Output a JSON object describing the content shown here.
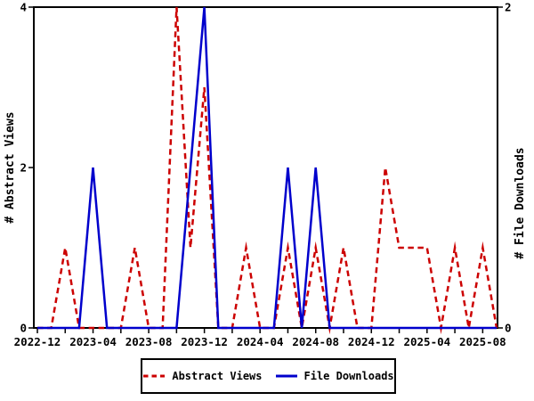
{
  "chart_data": {
    "type": "line",
    "title": "",
    "background": "#ffffff",
    "axis_color": "#000000",
    "grid": false,
    "x": [
      "2022-12",
      "2023-01",
      "2023-02",
      "2023-03",
      "2023-04",
      "2023-05",
      "2023-06",
      "2023-07",
      "2023-08",
      "2023-09",
      "2023-10",
      "2023-11",
      "2023-12",
      "2024-01",
      "2024-02",
      "2024-03",
      "2024-04",
      "2024-05",
      "2024-06",
      "2024-07",
      "2024-08",
      "2024-09",
      "2024-10",
      "2024-11",
      "2024-12",
      "2025-01",
      "2025-02",
      "2025-03",
      "2025-04",
      "2025-05",
      "2025-06",
      "2025-07",
      "2025-08",
      "2025-09"
    ],
    "x_tick_labels": [
      "2022-12",
      "2023-04",
      "2023-08",
      "2023-12",
      "2024-04",
      "2024-08",
      "2024-12",
      "2025-04",
      "2025-08"
    ],
    "x_label_every_months": 4,
    "x_minor_tick_every_months": 2,
    "left_axis": {
      "label": "# Abstract Views",
      "min": 0,
      "max": 4,
      "ticks": [
        0,
        2,
        4
      ]
    },
    "right_axis": {
      "label": "# File Downloads",
      "min": 0,
      "max": 2,
      "ticks": [
        0,
        2
      ]
    },
    "series": [
      {
        "name": "Abstract Views",
        "axis": "left",
        "color": "#cc0000",
        "style": "dashed",
        "values": [
          0,
          0,
          1,
          0,
          0,
          0,
          0,
          1,
          0,
          0,
          4,
          1,
          3,
          0,
          0,
          1,
          0,
          0,
          1,
          0,
          1,
          0,
          1,
          0,
          0,
          2,
          1,
          1,
          1,
          0,
          1,
          0,
          1,
          0
        ]
      },
      {
        "name": "File Downloads",
        "axis": "right",
        "color": "#0000cc",
        "style": "solid",
        "values": [
          0,
          0,
          0,
          0,
          1,
          0,
          0,
          0,
          0,
          0,
          0,
          1,
          2,
          0,
          0,
          0,
          0,
          0,
          1,
          0,
          1,
          0,
          0,
          0,
          0,
          0,
          0,
          0,
          0,
          0,
          0,
          0,
          0,
          0
        ]
      }
    ],
    "legend": {
      "position": "bottom-center",
      "items": [
        "Abstract Views",
        "File Downloads"
      ]
    }
  }
}
